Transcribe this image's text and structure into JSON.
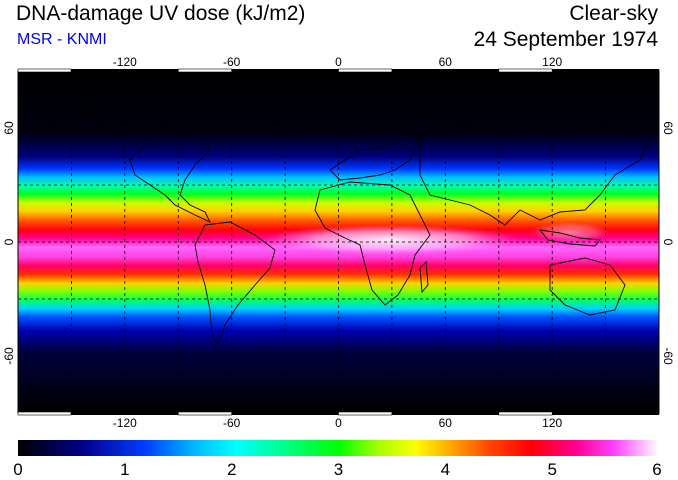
{
  "header": {
    "title": "DNA-damage UV dose (kJ/m2)",
    "subtitle": "MSR - KNMI",
    "sky_condition": "Clear-sky",
    "date": "24 September 1974"
  },
  "map": {
    "projection": "equirectangular",
    "lon_range": [
      -180,
      180
    ],
    "lat_range": [
      -90,
      90
    ],
    "gridlines": "dashed, every 30 degrees",
    "lon_tick_labels": [
      "-120",
      "-60",
      "0",
      "60",
      "120"
    ],
    "lat_tick_labels": [
      "60",
      "0",
      "-60"
    ],
    "coastlines": true,
    "quantity": "DNA-damage UV dose",
    "unit": "kJ/m2"
  },
  "colorbar": {
    "min": 0,
    "max": 6,
    "tick_labels": [
      "0",
      "1",
      "2",
      "3",
      "4",
      "5",
      "6"
    ],
    "colors": [
      "#000000",
      "#00008b",
      "#0000ff",
      "#00bfff",
      "#00ffff",
      "#00ff7f",
      "#00ff00",
      "#9aff00",
      "#ffff00",
      "#ffa500",
      "#ff4000",
      "#ff0000",
      "#ff0080",
      "#ff00ff",
      "#ffaaff",
      "#ffffff"
    ]
  },
  "colors": {
    "subtitle": "#0000ee",
    "frame": "#000000"
  }
}
